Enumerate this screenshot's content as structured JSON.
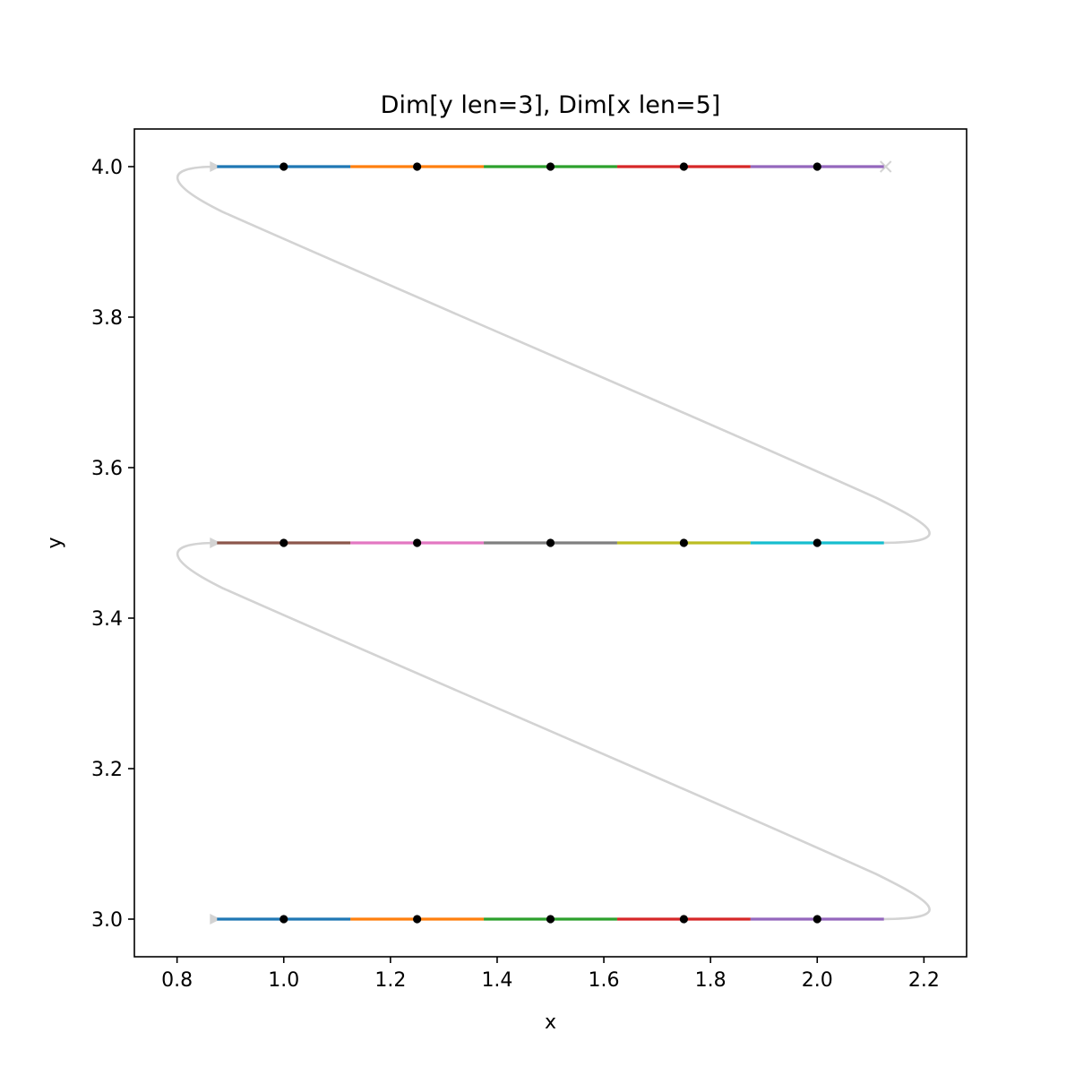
{
  "chart_data": {
    "type": "line",
    "title": "Dim[y len=3], Dim[x len=5]",
    "xlabel": "x",
    "ylabel": "y",
    "xlim": [
      0.72,
      2.28
    ],
    "ylim": [
      2.95,
      4.05
    ],
    "xticks": [
      0.8,
      1.0,
      1.2,
      1.4,
      1.6,
      1.8,
      2.0,
      2.2
    ],
    "xtick_labels": [
      "0.8",
      "1.0",
      "1.2",
      "1.4",
      "1.6",
      "1.8",
      "2.0",
      "2.2"
    ],
    "yticks": [
      3.0,
      3.2,
      3.4,
      3.6,
      3.8,
      4.0
    ],
    "ytick_labels": [
      "3.0",
      "3.2",
      "3.4",
      "3.6",
      "3.8",
      "4.0"
    ],
    "grid": false,
    "cell_width": 0.25,
    "rows": [
      {
        "y": 3.0,
        "x": [
          1.0,
          1.25,
          1.5,
          1.75,
          2.0
        ],
        "colors": [
          "#1f77b4",
          "#ff7f0e",
          "#2ca02c",
          "#d62728",
          "#9467bd"
        ]
      },
      {
        "y": 3.5,
        "x": [
          1.0,
          1.25,
          1.5,
          1.75,
          2.0
        ],
        "colors": [
          "#8c564b",
          "#e377c2",
          "#7f7f7f",
          "#bcbd22",
          "#17becf"
        ]
      },
      {
        "y": 4.0,
        "x": [
          1.0,
          1.25,
          1.5,
          1.75,
          2.0
        ],
        "colors": [
          "#1f77b4",
          "#ff7f0e",
          "#2ca02c",
          "#d62728",
          "#9467bd"
        ]
      }
    ],
    "path": {
      "color": "#d3d3d3",
      "start_x": 0.875,
      "end_x": 2.125,
      "turn_right_x": 2.21,
      "turn_left_x": 0.785,
      "start_marker": "triangle-right",
      "end_marker": "x"
    },
    "point_color": "#000000"
  }
}
